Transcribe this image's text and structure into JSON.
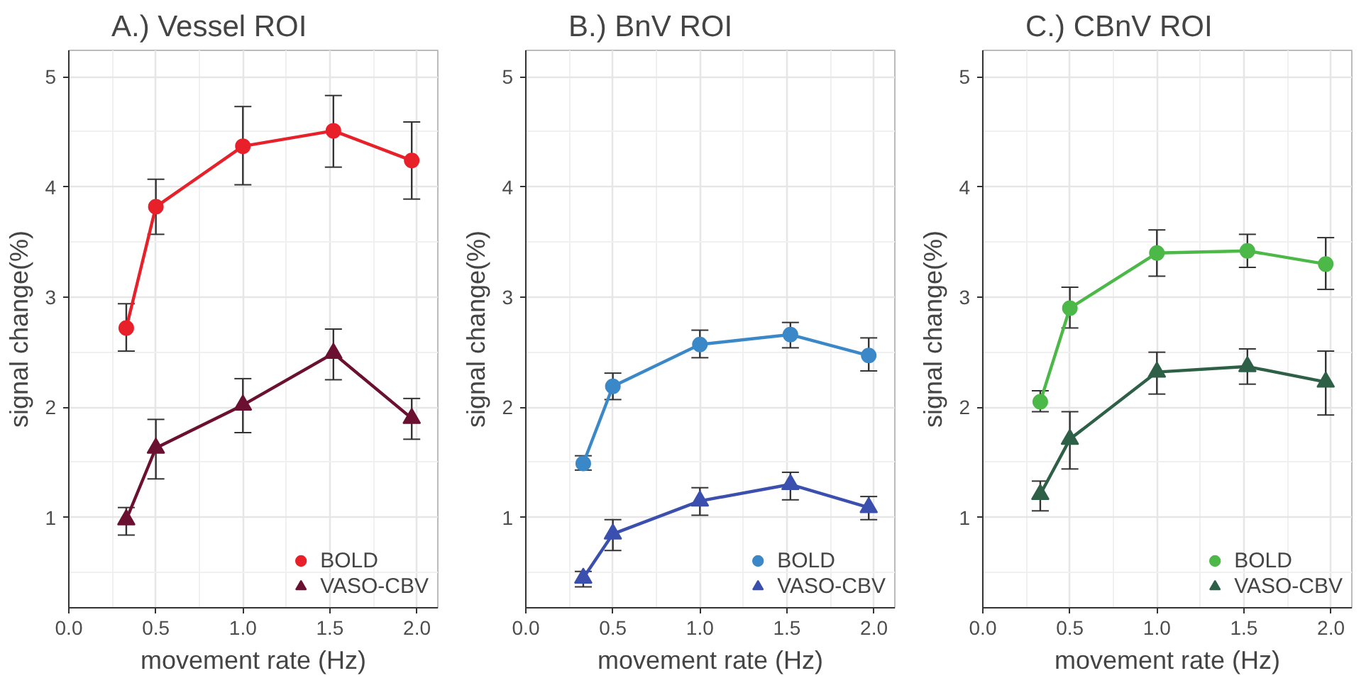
{
  "chart_data": [
    {
      "type": "line",
      "title": "A.) Vessel ROI",
      "xlabel": "movement rate (Hz)",
      "ylabel": "signal change(%)",
      "legend": "bottom right",
      "grid": true,
      "xlim": [
        0,
        2.12
      ],
      "ylim": [
        0.18,
        5.24
      ],
      "xticks": [
        {
          "value": 0,
          "label": "0.0"
        },
        {
          "value": 0.5,
          "label": "0.5"
        },
        {
          "value": 1,
          "label": "1.0"
        },
        {
          "value": 1.5,
          "label": "1.5"
        },
        {
          "value": 2,
          "label": "2.0"
        }
      ],
      "yticks": [
        1,
        2,
        3,
        4,
        5
      ],
      "series": [
        {
          "name": "BOLD",
          "color": "#e8202a",
          "marker": "circle",
          "x": [
            0.33,
            0.5,
            1.0,
            1.52,
            1.97
          ],
          "values": [
            2.72,
            3.82,
            4.37,
            4.51,
            4.24
          ],
          "errors": [
            [
              2.51,
              2.94
            ],
            [
              3.57,
              4.07
            ],
            [
              4.02,
              4.73
            ],
            [
              4.18,
              4.83
            ],
            [
              3.89,
              4.59
            ]
          ]
        },
        {
          "name": "VASO-CBV",
          "color": "#6b1030",
          "marker": "triangle",
          "x": [
            0.33,
            0.5,
            1.0,
            1.52,
            1.97
          ],
          "values": [
            0.98,
            1.63,
            2.02,
            2.49,
            1.9
          ],
          "errors": [
            [
              0.84,
              1.09
            ],
            [
              1.35,
              1.89
            ],
            [
              1.77,
              2.26
            ],
            [
              2.25,
              2.71
            ],
            [
              1.71,
              2.08
            ]
          ]
        }
      ]
    },
    {
      "type": "line",
      "title": "B.) BnV ROI",
      "xlabel": "movement rate (Hz)",
      "ylabel": "signal change(%)",
      "legend": "bottom right",
      "grid": true,
      "xlim": [
        0,
        2.12
      ],
      "ylim": [
        0.18,
        5.24
      ],
      "xticks": [
        {
          "value": 0,
          "label": "0.0"
        },
        {
          "value": 0.5,
          "label": "0.5"
        },
        {
          "value": 1,
          "label": "1.0"
        },
        {
          "value": 1.5,
          "label": "1.5"
        },
        {
          "value": 2,
          "label": "2.0"
        }
      ],
      "yticks": [
        1,
        2,
        3,
        4,
        5
      ],
      "series": [
        {
          "name": "BOLD",
          "color": "#3a88c8",
          "marker": "circle",
          "x": [
            0.33,
            0.5,
            1.0,
            1.52,
            1.97
          ],
          "values": [
            1.49,
            2.19,
            2.57,
            2.66,
            2.47
          ],
          "errors": [
            [
              1.43,
              1.56
            ],
            [
              2.07,
              2.31
            ],
            [
              2.45,
              2.7
            ],
            [
              2.54,
              2.77
            ],
            [
              2.33,
              2.63
            ]
          ]
        },
        {
          "name": "VASO-CBV",
          "color": "#3a4fae",
          "marker": "triangle",
          "x": [
            0.33,
            0.5,
            1.0,
            1.52,
            1.97
          ],
          "values": [
            0.45,
            0.85,
            1.15,
            1.3,
            1.09
          ],
          "errors": [
            [
              0.37,
              0.51
            ],
            [
              0.7,
              0.98
            ],
            [
              1.02,
              1.27
            ],
            [
              1.16,
              1.41
            ],
            [
              0.98,
              1.19
            ]
          ]
        }
      ]
    },
    {
      "type": "line",
      "title": "C.) CBnV ROI",
      "xlabel": "movement rate (Hz)",
      "ylabel": "signal change(%)",
      "legend": "bottom right",
      "grid": true,
      "xlim": [
        0,
        2.12
      ],
      "ylim": [
        0.18,
        5.24
      ],
      "xticks": [
        {
          "value": 0,
          "label": "0.0"
        },
        {
          "value": 0.5,
          "label": "0.5"
        },
        {
          "value": 1,
          "label": "1.0"
        },
        {
          "value": 1.5,
          "label": "1.5"
        },
        {
          "value": 2,
          "label": "2.0"
        }
      ],
      "yticks": [
        1,
        2,
        3,
        4,
        5
      ],
      "series": [
        {
          "name": "BOLD",
          "color": "#4cb848",
          "marker": "circle",
          "x": [
            0.33,
            0.5,
            1.0,
            1.52,
            1.97
          ],
          "values": [
            2.05,
            2.9,
            3.4,
            3.42,
            3.3
          ],
          "errors": [
            [
              1.96,
              2.15
            ],
            [
              2.72,
              3.09
            ],
            [
              3.19,
              3.61
            ],
            [
              3.27,
              3.57
            ],
            [
              3.07,
              3.54
            ]
          ]
        },
        {
          "name": "VASO-CBV",
          "color": "#2e6048",
          "marker": "triangle",
          "x": [
            0.33,
            0.5,
            1.0,
            1.52,
            1.97
          ],
          "values": [
            1.21,
            1.71,
            2.32,
            2.37,
            2.23
          ],
          "errors": [
            [
              1.06,
              1.33
            ],
            [
              1.44,
              1.96
            ],
            [
              2.12,
              2.5
            ],
            [
              2.21,
              2.53
            ],
            [
              1.93,
              2.51
            ]
          ]
        }
      ]
    }
  ]
}
